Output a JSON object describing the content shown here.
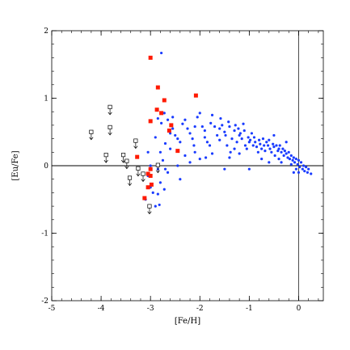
{
  "chart_data": {
    "type": "scatter",
    "title": "",
    "xlabel": "[Fe/H]",
    "ylabel": "[Eu/Fe]",
    "xlim": [
      -5,
      0.5
    ],
    "ylim": [
      -2,
      2
    ],
    "x_ticks": [
      -5,
      -4,
      -3,
      -2,
      -1,
      0
    ],
    "y_ticks": [
      -2,
      -1,
      0,
      1,
      2
    ],
    "x_tick_labels": [
      "-5",
      "-4",
      "-3",
      "-2",
      "-1",
      "0"
    ],
    "y_tick_labels": [
      "-2",
      "-1",
      "0",
      "1",
      "2"
    ],
    "reference_lines": {
      "horizontal_y": 0,
      "vertical_x": 0
    },
    "grid": false,
    "legend": "none",
    "colors": {
      "blue": "#1a3cff",
      "red": "#ff1a00",
      "upper_limit": "#000000"
    },
    "series": [
      {
        "marker": "blue-dot",
        "color": "#1a3cff",
        "points": [
          [
            -2.78,
            1.67
          ],
          [
            -2.85,
            0.7
          ],
          [
            -2.78,
            0.63
          ],
          [
            -2.72,
            0.78
          ],
          [
            -2.65,
            0.68
          ],
          [
            -2.9,
            0.42
          ],
          [
            -2.7,
            0.33
          ],
          [
            -2.6,
            0.25
          ],
          [
            -2.55,
            0.72
          ],
          [
            -2.8,
            0.2
          ],
          [
            -2.75,
            0.08
          ],
          [
            -2.85,
            -0.05
          ],
          [
            -2.65,
            -0.1
          ],
          [
            -2.8,
            -0.25
          ],
          [
            -2.72,
            -0.35
          ],
          [
            -2.85,
            -0.42
          ],
          [
            -2.9,
            -0.6
          ],
          [
            -2.82,
            -0.58
          ],
          [
            -3.05,
            0.2
          ],
          [
            -3.0,
            0.0
          ],
          [
            -3.05,
            -0.15
          ],
          [
            -3.0,
            -0.32
          ],
          [
            -2.95,
            -0.4
          ],
          [
            -3.1,
            -0.5
          ],
          [
            -2.7,
            -0.05
          ],
          [
            -2.6,
            0.48
          ],
          [
            -2.55,
            0.55
          ],
          [
            -2.5,
            0.45
          ],
          [
            -2.45,
            0.4
          ],
          [
            -2.4,
            0.35
          ],
          [
            -2.35,
            0.62
          ],
          [
            -2.3,
            0.68
          ],
          [
            -2.25,
            0.55
          ],
          [
            -2.2,
            0.48
          ],
          [
            -2.15,
            0.4
          ],
          [
            -2.12,
            0.3
          ],
          [
            -2.1,
            0.2
          ],
          [
            -2.05,
            0.72
          ],
          [
            -2.0,
            0.78
          ],
          [
            -1.95,
            0.58
          ],
          [
            -1.9,
            0.52
          ],
          [
            -1.88,
            0.12
          ],
          [
            -1.85,
            0.35
          ],
          [
            -1.8,
            0.3
          ],
          [
            -1.78,
            0.63
          ],
          [
            -1.75,
            0.75
          ],
          [
            -1.7,
            0.58
          ],
          [
            -1.65,
            0.45
          ],
          [
            -1.6,
            0.38
          ],
          [
            -1.58,
            0.7
          ],
          [
            -1.55,
            0.6
          ],
          [
            -1.5,
            0.5
          ],
          [
            -1.48,
            0.45
          ],
          [
            -1.45,
            0.3
          ],
          [
            -1.42,
            0.65
          ],
          [
            -1.4,
            0.58
          ],
          [
            -1.38,
            0.2
          ],
          [
            -1.35,
            0.4
          ],
          [
            -1.3,
            0.52
          ],
          [
            -1.28,
            0.6
          ],
          [
            -1.25,
            0.35
          ],
          [
            -1.22,
            0.55
          ],
          [
            -1.2,
            0.45
          ],
          [
            -1.18,
            0.48
          ],
          [
            -1.15,
            0.4
          ],
          [
            -1.12,
            0.62
          ],
          [
            -1.1,
            0.52
          ],
          [
            -1.08,
            0.3
          ],
          [
            -1.05,
            0.25
          ],
          [
            -1.02,
            0.42
          ],
          [
            -1.0,
            0.35
          ],
          [
            -0.98,
            0.38
          ],
          [
            -0.95,
            0.48
          ],
          [
            -0.92,
            0.3
          ],
          [
            -0.9,
            0.42
          ],
          [
            -0.88,
            0.35
          ],
          [
            -0.85,
            0.28
          ],
          [
            -0.82,
            0.2
          ],
          [
            -0.8,
            0.38
          ],
          [
            -0.78,
            0.32
          ],
          [
            -0.75,
            0.25
          ],
          [
            -0.72,
            0.4
          ],
          [
            -0.7,
            0.3
          ],
          [
            -0.68,
            0.22
          ],
          [
            -0.65,
            0.35
          ],
          [
            -0.62,
            0.3
          ],
          [
            -0.6,
            0.38
          ],
          [
            -0.58,
            0.25
          ],
          [
            -0.55,
            0.2
          ],
          [
            -0.52,
            0.32
          ],
          [
            -0.5,
            0.28
          ],
          [
            -0.48,
            0.15
          ],
          [
            -0.45,
            0.3
          ],
          [
            -0.42,
            0.22
          ],
          [
            -0.4,
            0.25
          ],
          [
            -0.38,
            0.3
          ],
          [
            -0.35,
            0.2
          ],
          [
            -0.32,
            0.25
          ],
          [
            -0.3,
            0.15
          ],
          [
            -0.28,
            0.22
          ],
          [
            -0.25,
            0.18
          ],
          [
            -0.22,
            0.12
          ],
          [
            -0.2,
            0.2
          ],
          [
            -0.18,
            0.1
          ],
          [
            -0.15,
            0.15
          ],
          [
            -0.12,
            0.08
          ],
          [
            -0.1,
            0.12
          ],
          [
            -0.08,
            0.05
          ],
          [
            -0.05,
            0.1
          ],
          [
            -0.02,
            0.02
          ],
          [
            0.0,
            0.08
          ],
          [
            0.02,
            -0.02
          ],
          [
            0.05,
            0.05
          ],
          [
            0.08,
            -0.05
          ],
          [
            0.1,
            0.0
          ],
          [
            0.12,
            -0.08
          ],
          [
            0.15,
            -0.02
          ],
          [
            0.18,
            -0.1
          ],
          [
            0.2,
            -0.05
          ],
          [
            0.25,
            -0.12
          ],
          [
            -1.9,
            0.42
          ],
          [
            -1.6,
            0.55
          ],
          [
            -1.3,
            0.25
          ],
          [
            -0.75,
            0.1
          ],
          [
            -0.5,
            0.45
          ],
          [
            -1.75,
            0.18
          ],
          [
            -2.3,
            0.15
          ],
          [
            -2.0,
            0.1
          ],
          [
            -1.5,
            -0.05
          ],
          [
            -1.0,
            -0.05
          ],
          [
            -0.6,
            0.05
          ],
          [
            -0.35,
            0.05
          ],
          [
            -0.1,
            -0.1
          ],
          [
            -0.05,
            -0.05
          ],
          [
            0.0,
            -0.1
          ],
          [
            -0.25,
            0.35
          ],
          [
            -0.15,
            0.02
          ],
          [
            -0.4,
            0.1
          ],
          [
            -1.2,
            0.18
          ],
          [
            -1.4,
            0.12
          ],
          [
            -2.1,
            0.58
          ],
          [
            -2.4,
            -0.2
          ],
          [
            -2.2,
            0.05
          ],
          [
            -2.45,
            0.0
          ]
        ]
      },
      {
        "marker": "red-square",
        "color": "#ff1a00",
        "points": [
          [
            -3.0,
            1.6
          ],
          [
            -2.85,
            1.16
          ],
          [
            -2.08,
            1.04
          ],
          [
            -2.72,
            0.97
          ],
          [
            -2.87,
            0.83
          ],
          [
            -2.78,
            0.78
          ],
          [
            -3.0,
            0.66
          ],
          [
            -2.58,
            0.6
          ],
          [
            -2.62,
            0.52
          ],
          [
            -2.45,
            0.22
          ],
          [
            -3.27,
            0.13
          ],
          [
            -3.0,
            -0.05
          ],
          [
            -3.05,
            -0.12
          ],
          [
            -3.0,
            -0.15
          ],
          [
            -2.98,
            -0.28
          ],
          [
            -3.05,
            -0.32
          ],
          [
            -3.12,
            -0.48
          ]
        ]
      },
      {
        "marker": "open-square-upper-limit",
        "color": "#000000",
        "points": [
          [
            -4.2,
            0.5
          ],
          [
            -3.82,
            0.87
          ],
          [
            -3.82,
            0.57
          ],
          [
            -3.9,
            0.16
          ],
          [
            -3.55,
            0.16
          ],
          [
            -3.48,
            0.07
          ],
          [
            -3.3,
            0.37
          ],
          [
            -3.25,
            -0.04
          ],
          [
            -3.42,
            -0.18
          ],
          [
            -3.15,
            -0.12
          ],
          [
            -2.85,
            0.01
          ],
          [
            -3.02,
            -0.6
          ]
        ]
      }
    ]
  }
}
